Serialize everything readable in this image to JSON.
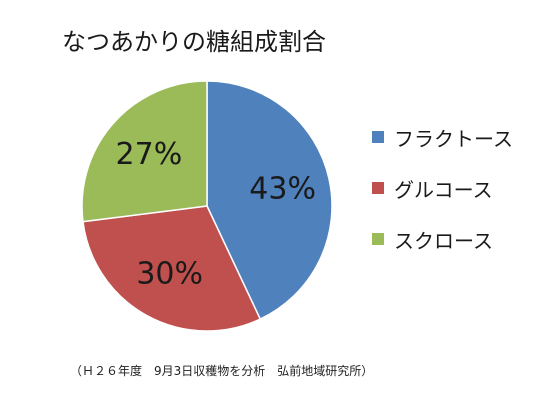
{
  "title": "なつあかりの糖組成割合",
  "note": "（Ｈ２６年度　9月3日収穫物を分析　弘前地域研究所）",
  "chart_data": {
    "type": "pie",
    "title": "なつあかりの糖組成割合",
    "legend_position": "right",
    "slices": [
      {
        "label": "フラクトース",
        "value": 43,
        "display": "43%",
        "color": "#4F81BD"
      },
      {
        "label": "グルコース",
        "value": 30,
        "display": "30%",
        "color": "#C0504D"
      },
      {
        "label": "スクロース",
        "value": 27,
        "display": "27%",
        "color": "#9BBB59"
      }
    ]
  }
}
